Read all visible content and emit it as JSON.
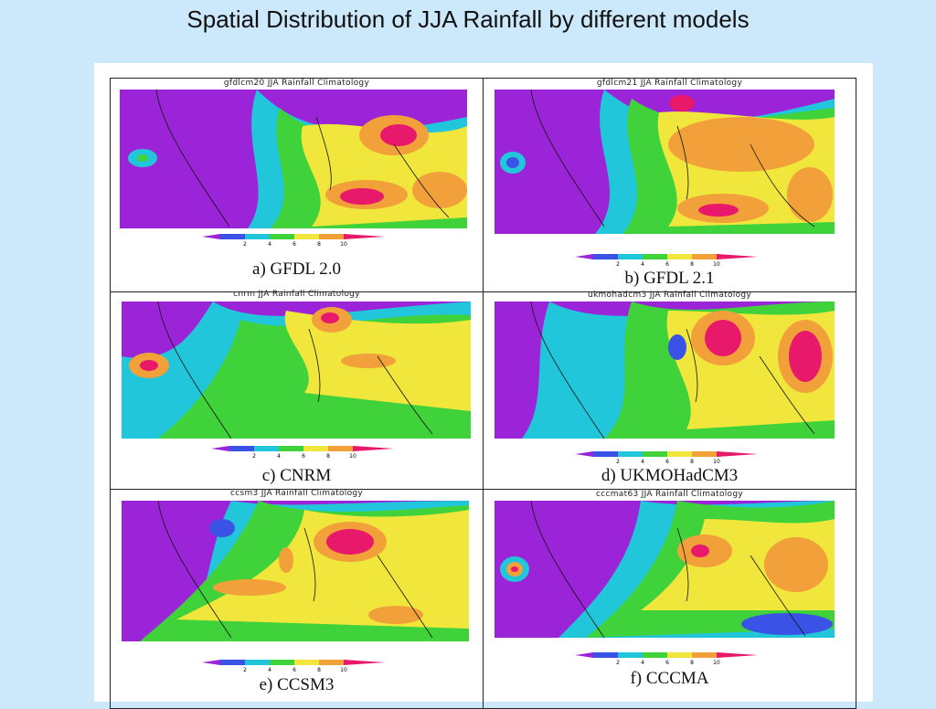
{
  "slide": {
    "title": "Spatial Distribution of JJA Rainfall by different models"
  },
  "colorbar": {
    "ticks": [
      "2",
      "4",
      "6",
      "8",
      "10",
      "12"
    ]
  },
  "panels": [
    {
      "header": "gfdlcm20 JJA Rainfall Climatology",
      "caption": "a) GFDL 2.0"
    },
    {
      "header": "gfdlcm21 JJA Rainfall Climatology",
      "caption": "b) GFDL 2.1"
    },
    {
      "header": "cnrm JJA Rainfall Climatology",
      "caption": "c) CNRM"
    },
    {
      "header": "ukmohadcm3 JJA Rainfall Climatology",
      "caption": "d) UKMOHadCM3"
    },
    {
      "header": "ccsm3 JJA Rainfall Climatology",
      "caption": "e) CCSM3"
    },
    {
      "header": "cccmat63 JJA Rainfall Climatology",
      "caption": "f) CCCMA"
    }
  ],
  "colors": {
    "purple": "#9b24d8",
    "blue": "#3a52e6",
    "cyan": "#22c6da",
    "green": "#3fd23a",
    "yellow": "#f0e63c",
    "orange": "#f2a03a",
    "red": "#e8186a"
  }
}
